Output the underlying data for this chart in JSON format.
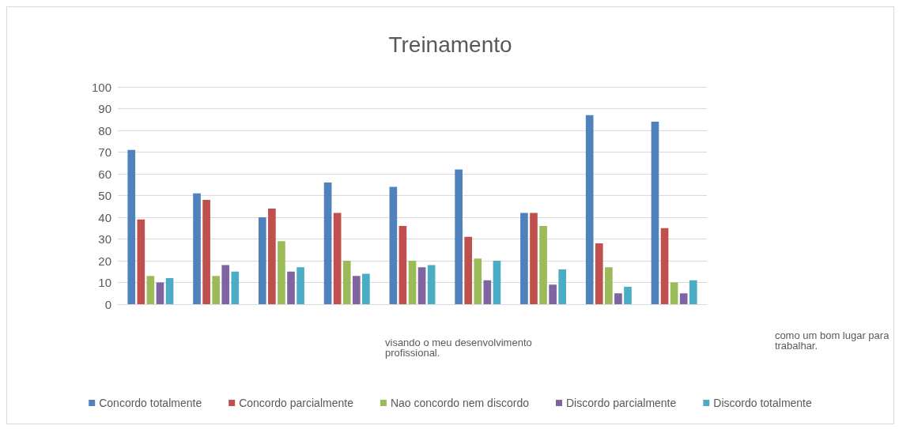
{
  "chart_data": {
    "type": "bar",
    "title": "Treinamento",
    "categories": [
      null,
      null,
      null,
      null,
      null,
      null,
      null,
      null,
      null
    ],
    "series": [
      {
        "name": "Concordo totalmente",
        "color": "#4f81bd",
        "values": [
          71,
          51,
          40,
          56,
          54,
          62,
          42,
          87,
          84
        ]
      },
      {
        "name": "Concordo parcialmente",
        "color": "#c0504d",
        "values": [
          39,
          48,
          44,
          42,
          36,
          31,
          42,
          28,
          35
        ]
      },
      {
        "name": "Nao concordo nem discordo",
        "color": "#9bbb59",
        "values": [
          13,
          13,
          29,
          20,
          20,
          21,
          36,
          17,
          10
        ]
      },
      {
        "name": "Discordo parcialmente",
        "color": "#8064a2",
        "values": [
          10,
          18,
          15,
          13,
          17,
          11,
          9,
          5,
          5
        ]
      },
      {
        "name": "Discordo totalmente",
        "color": "#4bacc6",
        "values": [
          12,
          15,
          17,
          14,
          18,
          20,
          16,
          8,
          11
        ]
      }
    ],
    "ylim": [
      0,
      100
    ],
    "yticks": [
      0,
      10,
      20,
      30,
      40,
      50,
      60,
      70,
      80,
      90,
      100
    ],
    "grid": "y",
    "legend": "bottom",
    "annotations": [
      "visando o meu desenvolvimento profissional.",
      "como um bom lugar para trabalhar."
    ]
  }
}
